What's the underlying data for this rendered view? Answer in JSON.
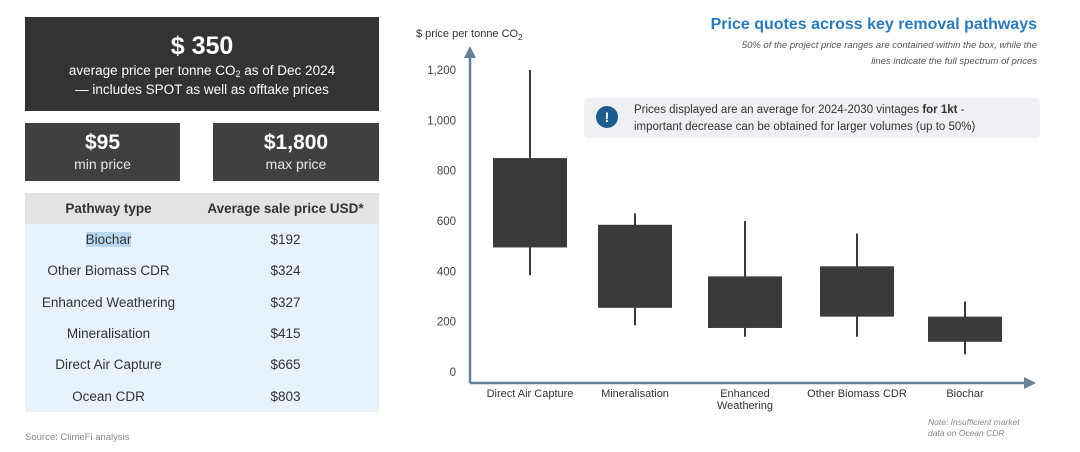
{
  "summary": {
    "hero_value": "$ 350",
    "hero_line1_pre": "average price per tonne CO",
    "hero_line1_sub": "2",
    "hero_line1_post": " as of Dec 2024",
    "hero_line2": "— includes SPOT as well as offtake prices",
    "min_value": "$95",
    "min_label": "min price",
    "max_value": "$1,800",
    "max_label": "max price"
  },
  "table": {
    "headers": [
      "Pathway type",
      "Average sale price USD*"
    ],
    "rows": [
      {
        "pathway": "Biochar",
        "price": "$192"
      },
      {
        "pathway": "Other Biomass CDR",
        "price": "$324"
      },
      {
        "pathway": "Enhanced Weathering",
        "price": "$327"
      },
      {
        "pathway": "Mineralisation",
        "price": "$415"
      },
      {
        "pathway": "Direct Air Capture",
        "price": "$665"
      },
      {
        "pathway": "Ocean CDR",
        "price": "$803"
      }
    ]
  },
  "source": "Source: ClimeFi analysis",
  "colors": {
    "dark_box": "#333333",
    "stat_box": "#404040",
    "table_header": "#e3e3e3",
    "table_row": "#e8f2fb",
    "highlight": "#b9d6f0",
    "title_blue": "#2b7bb9",
    "axis": "#6b7f96",
    "candle": "#3a3a3a",
    "callout_bg": "#eef0f3",
    "callout_icon": "#1f5d8f"
  },
  "callout": {
    "icon": "exclamation-icon",
    "line1_pre": "Prices displayed are an average for 2024-2030 vintages ",
    "line1_bold": "for 1kt",
    "line1_post": " -",
    "line2": "important decrease can be obtained for larger volumes (up to 50%)"
  },
  "note": [
    "Note: Insufficient market",
    "data on Ocean CDR"
  ],
  "chart_data": {
    "type": "box",
    "title": "Price quotes across key removal pathways",
    "subtitle": [
      "50% of the project price ranges are contained within the box, while the",
      "lines indicate the full spectrum of prices"
    ],
    "ylabel_pre": "$ price per tonne CO",
    "ylabel_sub": "2",
    "ylim": [
      0,
      1250
    ],
    "yticks": [
      0,
      200,
      400,
      600,
      800,
      1000,
      1200
    ],
    "ytick_labels": [
      "0",
      "200",
      "400",
      "600",
      "800",
      "1,000",
      "1,200"
    ],
    "categories": [
      [
        "Direct Air Capture"
      ],
      [
        "Mineralisation"
      ],
      [
        "Enhanced",
        "Weathering"
      ],
      [
        "Other Biomass CDR"
      ],
      [
        "Biochar"
      ]
    ],
    "boxes": [
      {
        "low": 385,
        "q1": 495,
        "q3": 850,
        "high": 1200
      },
      {
        "low": 185,
        "q1": 255,
        "q3": 585,
        "high": 630
      },
      {
        "low": 140,
        "q1": 175,
        "q3": 380,
        "high": 600
      },
      {
        "low": 140,
        "q1": 220,
        "q3": 420,
        "high": 550
      },
      {
        "low": 70,
        "q1": 120,
        "q3": 220,
        "high": 280
      }
    ],
    "grid": false,
    "legend": "none"
  }
}
